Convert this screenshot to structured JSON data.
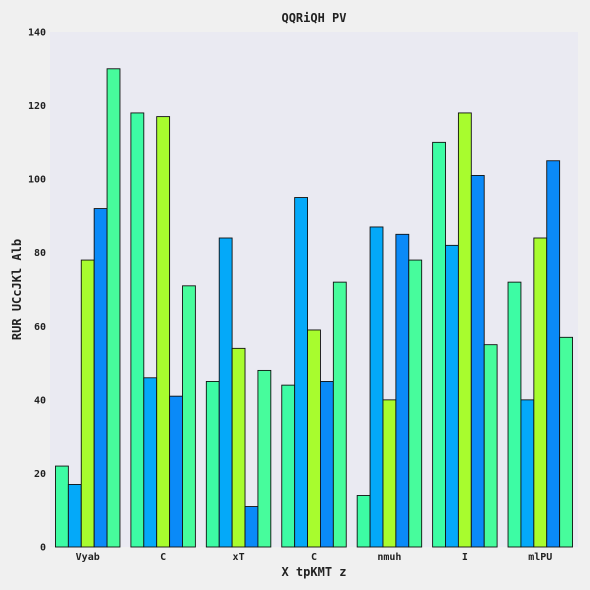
{
  "chart_data": {
    "type": "bar",
    "title": "QQRiQH PV",
    "xlabel": "X tpKMT z",
    "ylabel": "RUR UCcJKl Alb",
    "categories": [
      "Vyab",
      "C",
      "xT",
      "C",
      "nmuh",
      "I",
      "mlPU"
    ],
    "ylim": [
      0,
      140
    ],
    "yticks": [
      0,
      20,
      40,
      60,
      80,
      100,
      120,
      140
    ],
    "grid": false,
    "legend": "none",
    "plot_background": "#eaeaf2",
    "series": [
      {
        "color": "#3dfca4",
        "values": [
          22,
          118,
          45,
          44,
          14,
          110,
          72
        ]
      },
      {
        "color": "#04a9f9",
        "values": [
          17,
          46,
          84,
          95,
          87,
          82,
          40
        ]
      },
      {
        "color": "#a8fc2e",
        "values": [
          78,
          117,
          54,
          59,
          40,
          118,
          84
        ]
      },
      {
        "color": "#0a8af8",
        "values": [
          92,
          41,
          11,
          45,
          85,
          101,
          105
        ]
      },
      {
        "color": "#47fc9c",
        "values": [
          130,
          71,
          48,
          72,
          78,
          55,
          57
        ]
      }
    ]
  }
}
